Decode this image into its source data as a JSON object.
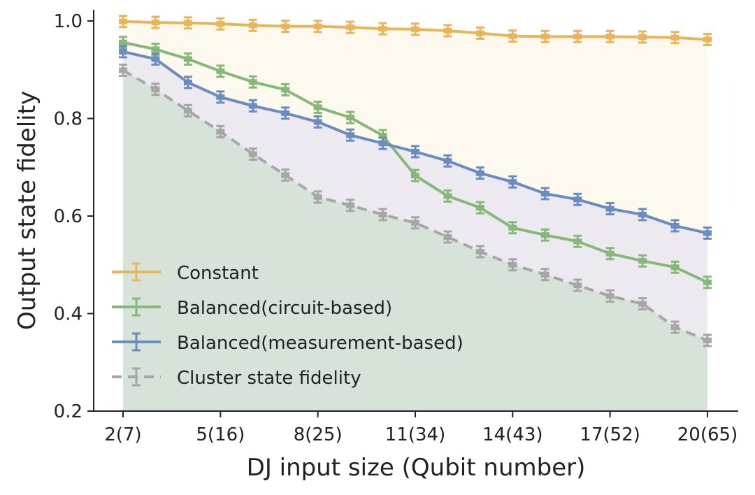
{
  "chart_data": {
    "type": "line",
    "title": "",
    "xlabel": "DJ input size (Qubit number)",
    "ylabel": "Output state fidelity",
    "x": [
      2,
      3,
      4,
      5,
      6,
      7,
      8,
      9,
      10,
      11,
      12,
      13,
      14,
      15,
      16,
      17,
      18,
      19,
      20
    ],
    "xlim": [
      2,
      20
    ],
    "ylim": [
      0.2,
      1.0
    ],
    "xticks": [
      {
        "value": 2,
        "label": "2(7)"
      },
      {
        "value": 5,
        "label": "5(16)"
      },
      {
        "value": 8,
        "label": "8(25)"
      },
      {
        "value": 11,
        "label": "11(34)"
      },
      {
        "value": 14,
        "label": "14(43)"
      },
      {
        "value": 17,
        "label": "17(52)"
      },
      {
        "value": 20,
        "label": "20(65)"
      }
    ],
    "yticks": [
      {
        "value": 1.0,
        "label": "1.0"
      },
      {
        "value": 0.8,
        "label": "0.8"
      },
      {
        "value": 0.6,
        "label": "0.6"
      },
      {
        "value": 0.4,
        "label": "0.4"
      },
      {
        "value": 0.2,
        "label": "0.2"
      }
    ],
    "legend_position": "lower-left",
    "series": [
      {
        "name": "Constant",
        "color": "#E8B55B",
        "fill": "#FEF9EE",
        "dashed": false,
        "values": [
          0.999,
          0.997,
          0.996,
          0.994,
          0.991,
          0.989,
          0.989,
          0.987,
          0.984,
          0.983,
          0.98,
          0.975,
          0.969,
          0.968,
          0.968,
          0.968,
          0.967,
          0.966,
          0.962
        ]
      },
      {
        "name": "Balanced(circuit-based)",
        "color": "#86B879",
        "fill": "",
        "dashed": false,
        "values": [
          0.956,
          0.942,
          0.922,
          0.897,
          0.875,
          0.859,
          0.823,
          0.802,
          0.765,
          0.683,
          0.641,
          0.617,
          0.576,
          0.561,
          0.548,
          0.523,
          0.508,
          0.495,
          0.464
        ]
      },
      {
        "name": "Balanced(measurement-based)",
        "color": "#6A8CBF",
        "fill": "#ECEAF0",
        "dashed": false,
        "values": [
          0.937,
          0.922,
          0.874,
          0.844,
          0.826,
          0.811,
          0.793,
          0.766,
          0.749,
          0.732,
          0.713,
          0.688,
          0.67,
          0.646,
          0.634,
          0.615,
          0.603,
          0.58,
          0.565
        ]
      },
      {
        "name": "Cluster state fidelity",
        "color": "#A6A6A6",
        "fill": "#D7E2D8",
        "dashed": true,
        "values": [
          0.899,
          0.86,
          0.816,
          0.773,
          0.727,
          0.684,
          0.639,
          0.622,
          0.603,
          0.586,
          0.557,
          0.527,
          0.5,
          0.48,
          0.458,
          0.436,
          0.42,
          0.372,
          0.345
        ]
      }
    ]
  }
}
